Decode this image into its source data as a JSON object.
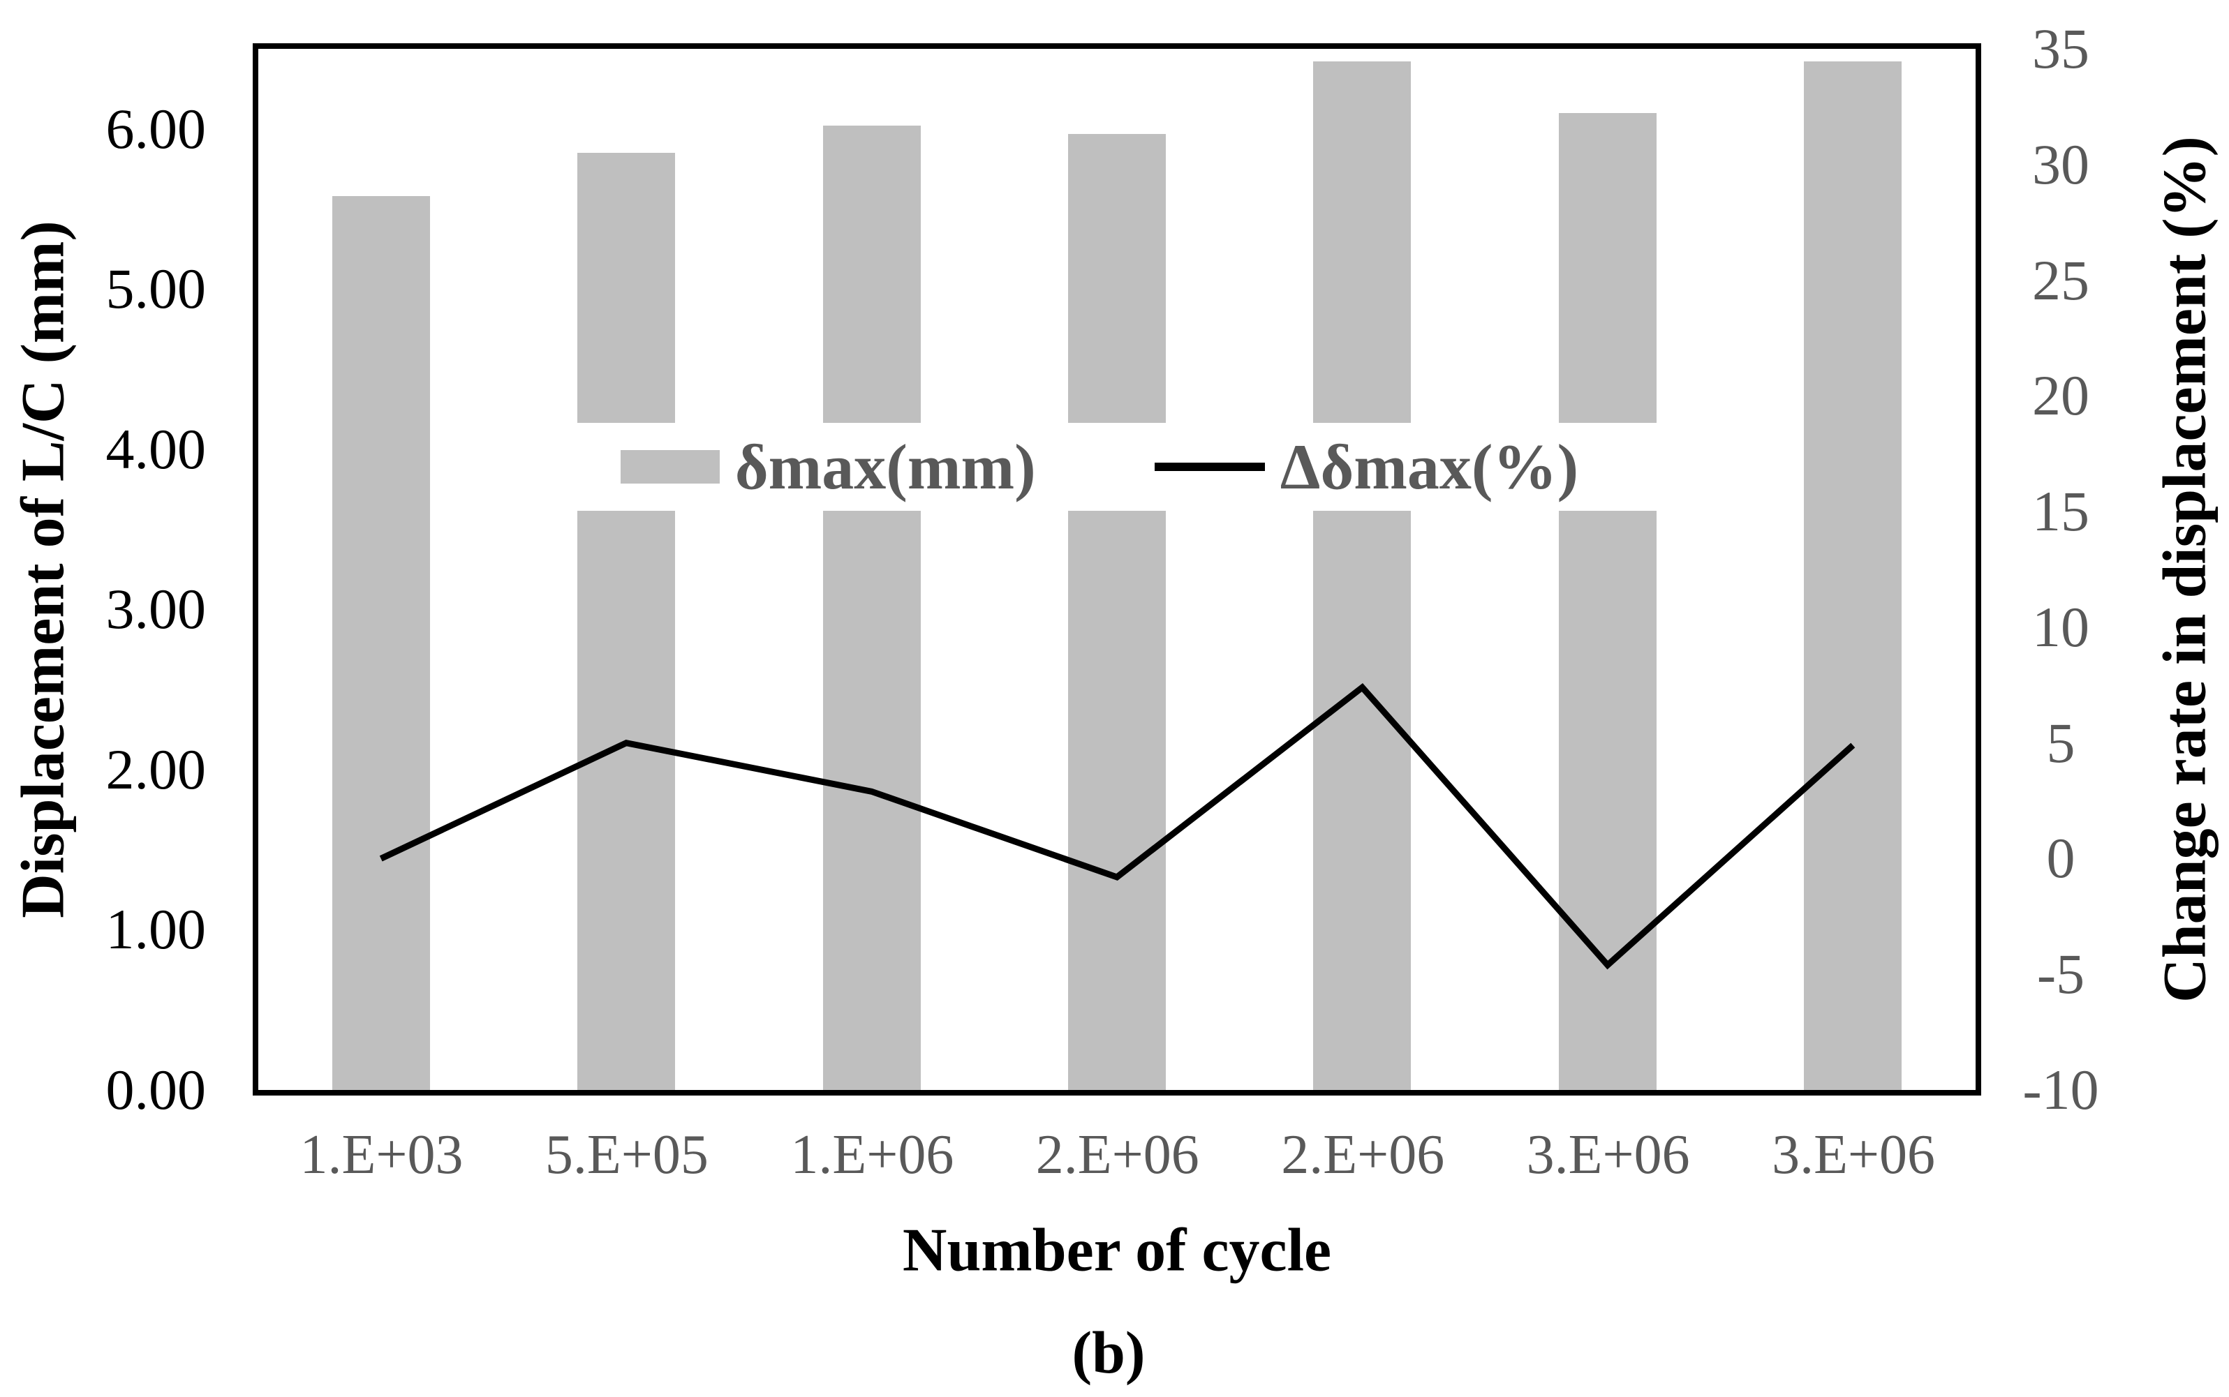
{
  "figure": {
    "caption": "(b)",
    "background": "#ffffff"
  },
  "chart_data": {
    "type": "bar",
    "subtype": "combo-bar-line",
    "categories": [
      "1.E+03",
      "5.E+05",
      "1.E+06",
      "2.E+06",
      "2.E+06",
      "3.E+06",
      "3.E+06"
    ],
    "series": [
      {
        "name": "δmax(mm)",
        "type": "bar",
        "axis": "left",
        "color": "#bfbfbf",
        "values": [
          5.58,
          5.85,
          6.02,
          5.97,
          6.42,
          6.1,
          6.42
        ]
      },
      {
        "name": "Δδmax(%)",
        "type": "line",
        "axis": "right",
        "color": "#000000",
        "values": [
          0.0,
          5.0,
          2.9,
          -0.8,
          7.4,
          -4.6,
          4.9
        ]
      }
    ],
    "xlabel": "Number of cycle",
    "left_axis": {
      "label": "Displacement of L/C (mm)",
      "min": 0,
      "max": 6.5,
      "tick_color": "#000000",
      "ticks": [
        {
          "v": 6,
          "label": "6.00"
        },
        {
          "v": 5,
          "label": "5.00"
        },
        {
          "v": 4,
          "label": "4.00"
        },
        {
          "v": 3,
          "label": "3.00"
        },
        {
          "v": 2,
          "label": "2.00"
        },
        {
          "v": 1,
          "label": "1.00"
        },
        {
          "v": 0,
          "label": "0.00"
        }
      ]
    },
    "right_axis": {
      "label": "Change rate in displacement (%)",
      "min": -10,
      "max": 35,
      "tick_color": "#595959",
      "ticks": [
        {
          "v": 35,
          "label": "35"
        },
        {
          "v": 30,
          "label": "30"
        },
        {
          "v": 25,
          "label": "25"
        },
        {
          "v": 20,
          "label": "20"
        },
        {
          "v": 15,
          "label": "15"
        },
        {
          "v": 10,
          "label": "10"
        },
        {
          "v": 5,
          "label": "5"
        },
        {
          "v": 0,
          "label": "0"
        },
        {
          "v": -5,
          "label": "-5"
        },
        {
          "v": -10,
          "label": "-10"
        }
      ]
    },
    "legend": {
      "position": "plot-center",
      "items": [
        "δmax(mm)",
        "Δδmax(%)"
      ]
    },
    "grid": false
  }
}
